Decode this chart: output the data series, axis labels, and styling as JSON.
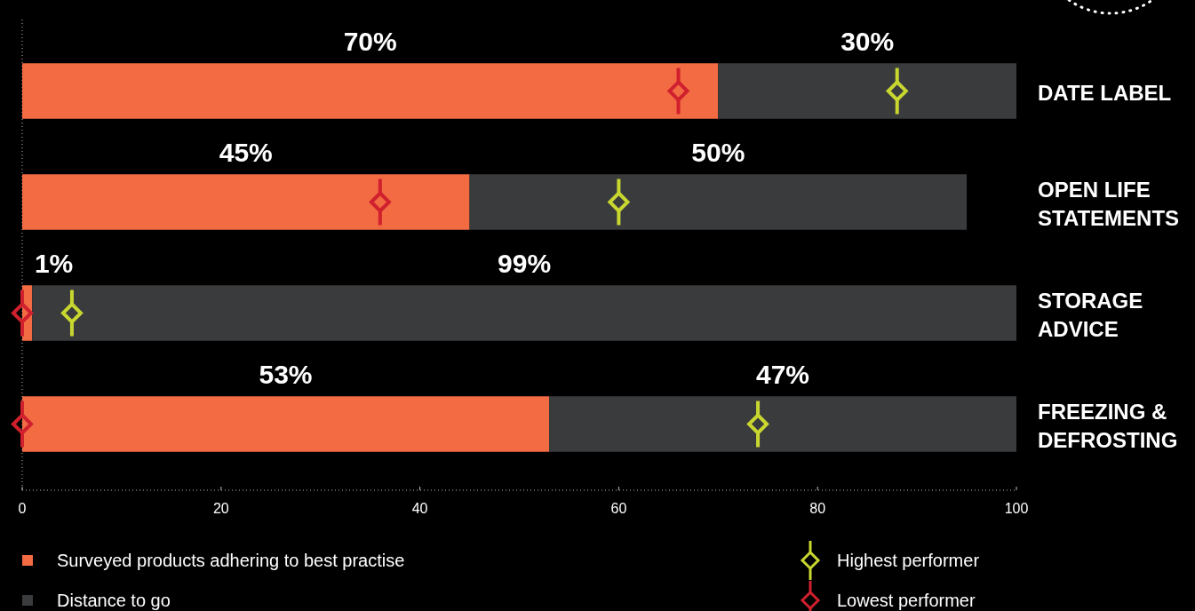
{
  "chart_data": {
    "type": "bar",
    "orientation": "horizontal",
    "stacked": true,
    "categories": [
      "DATE LABEL",
      "OPEN LIFE STATEMENTS",
      "STORAGE ADVICE",
      "FREEZING & DEFROSTING"
    ],
    "series": [
      {
        "name": "Surveyed products adhering to best practise",
        "color": "#f26b43",
        "values": [
          70,
          45,
          1,
          53
        ],
        "value_labels": [
          "70%",
          "45%",
          "1%",
          "53%"
        ]
      },
      {
        "name": "Distance to go",
        "color": "#3a3b3d",
        "values": [
          30,
          50,
          99,
          47
        ],
        "value_labels": [
          "30%",
          "50%",
          "99%",
          "47%"
        ]
      },
      {
        "type": "scatter",
        "name": "Highest performer",
        "color": "#c8d630",
        "x": [
          "DATE LABEL",
          "OPEN LIFE STATEMENTS",
          "STORAGE ADVICE",
          "FREEZING & DEFROSTING"
        ],
        "values": [
          88,
          60,
          5,
          74
        ]
      },
      {
        "type": "scatter",
        "name": "Lowest performer",
        "color": "#d0202e",
        "x": [
          "DATE LABEL",
          "OPEN LIFE STATEMENTS",
          "STORAGE ADVICE",
          "FREEZING & DEFROSTING"
        ],
        "values": [
          66,
          36,
          0,
          0
        ]
      }
    ],
    "marker": "diamond",
    "xlim": [
      0,
      100
    ],
    "xticks": [
      0,
      20,
      40,
      60,
      80,
      100
    ],
    "grid": false,
    "legend": "bottom"
  }
}
